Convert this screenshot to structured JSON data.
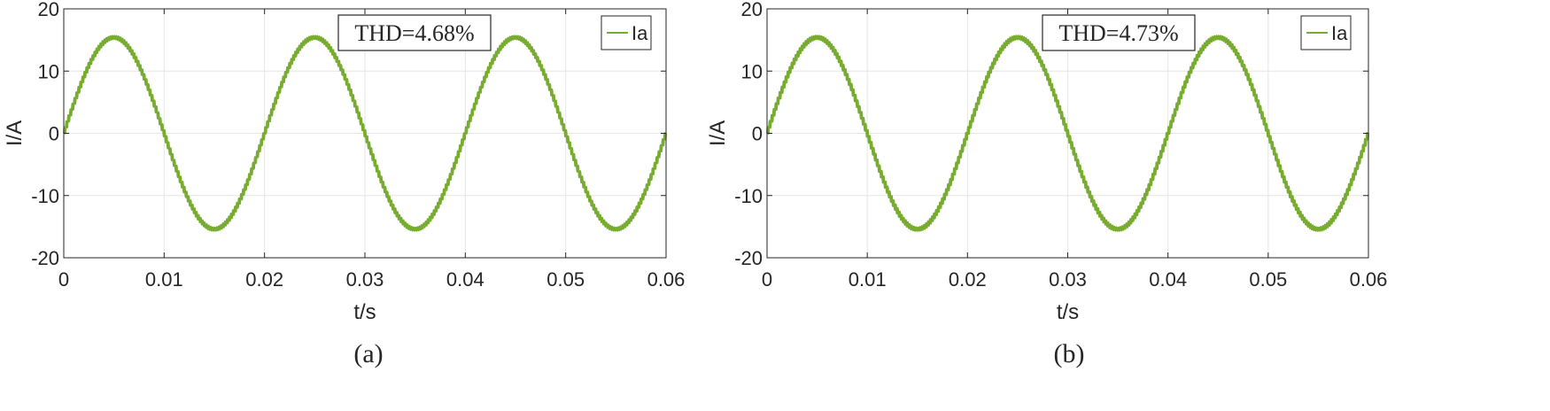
{
  "chart_data": [
    {
      "type": "line",
      "panel_label": "(a)",
      "title": "",
      "xlabel": "t/s",
      "ylabel": "I/A",
      "xlim": [
        0,
        0.06
      ],
      "ylim": [
        -20,
        20
      ],
      "xticks": [
        0,
        0.01,
        0.02,
        0.03,
        0.04,
        0.05,
        0.06
      ],
      "xtick_labels": [
        "0",
        "0.01",
        "0.02",
        "0.03",
        "0.04",
        "0.05",
        "0.06"
      ],
      "yticks": [
        -20,
        -10,
        0,
        10,
        20
      ],
      "ytick_labels": [
        "-20",
        "-10",
        "0",
        "10",
        "20"
      ],
      "grid": true,
      "legend_position": "top-right",
      "annotation": "THD=4.68%",
      "series": [
        {
          "name": "Ia",
          "color": "#77ac30",
          "waveform": {
            "amplitude": 15.4,
            "frequency_hz": 50,
            "phase_rad": 0,
            "ripple_amplitude": 0.75,
            "ripple_frequency_hz": 5000
          }
        }
      ]
    },
    {
      "type": "line",
      "panel_label": "(b)",
      "title": "",
      "xlabel": "t/s",
      "ylabel": "I/A",
      "xlim": [
        0,
        0.06
      ],
      "ylim": [
        -20,
        20
      ],
      "xticks": [
        0,
        0.01,
        0.02,
        0.03,
        0.04,
        0.05,
        0.06
      ],
      "xtick_labels": [
        "0",
        "0.01",
        "0.02",
        "0.03",
        "0.04",
        "0.05",
        "0.06"
      ],
      "yticks": [
        -20,
        -10,
        0,
        10,
        20
      ],
      "ytick_labels": [
        "-20",
        "-10",
        "0",
        "10",
        "20"
      ],
      "grid": true,
      "legend_position": "top-right",
      "annotation": "THD=4.73%",
      "series": [
        {
          "name": "Ia",
          "color": "#77ac30",
          "waveform": {
            "amplitude": 15.4,
            "frequency_hz": 50,
            "phase_rad": 0,
            "ripple_amplitude": 0.8,
            "ripple_frequency_hz": 5000
          }
        }
      ]
    }
  ]
}
